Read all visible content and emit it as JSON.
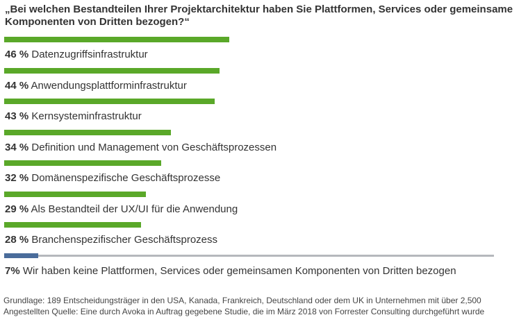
{
  "chart_data": {
    "type": "bar",
    "orientation": "horizontal",
    "title": "„Bei welchen Bestandteilen Ihrer Projektarchitektur haben Sie Plattformen, Services oder gemeinsame Komponenten von Dritten bezogen?“",
    "categories": [
      "Datenzugriffsinfrastruktur",
      "Anwendungsplattforminfrastruktur",
      "Kernsysteminfrastruktur",
      "Definition und Management von Geschäftsprozessen",
      "Domänenspezifische Geschäftsprozesse",
      "Als Bestandteil der UX/UI für die Anwendung",
      "Branchenspezifischer Geschäftsprozess",
      "Wir haben keine Plattformen, Services oder gemeinsamen Komponenten von Dritten bezogen"
    ],
    "values": [
      46,
      44,
      43,
      34,
      32,
      29,
      28,
      7
    ],
    "value_labels": [
      "46 %",
      "44 %",
      "43 %",
      "34 %",
      "32 %",
      "29 %",
      "28 %",
      "7%"
    ],
    "unit": "%",
    "xlim": [
      0,
      100
    ],
    "colors": {
      "bar": "#5aa829",
      "none_bar": "#4a6c9b",
      "none_track": "#b5b8bc"
    },
    "legend": "none",
    "grid": false
  },
  "footnote": "Grundlage: 189 Entscheidungsträger in den USA, Kanada, Frankreich, Deutschland oder dem UK in Unternehmen mit über 2,500 Angestellten Quelle: Eine durch Avoka in Auftrag gegebene Studie, die im März 2018 von Forrester Consulting durchgeführt wurde"
}
